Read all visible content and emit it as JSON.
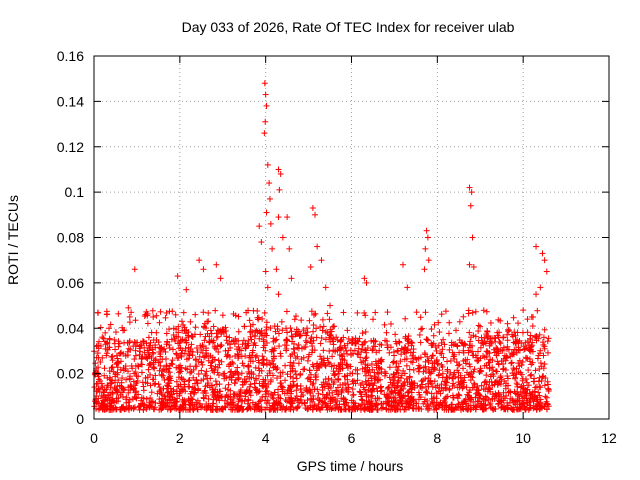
{
  "chart_data": {
    "type": "scatter",
    "title": "Day 033 of 2026, Rate Of TEC Index for receiver ulab",
    "xlabel": "GPS time / hours",
    "ylabel": "ROTI / TECUs",
    "xlim": [
      0,
      12
    ],
    "ylim": [
      0,
      0.16
    ],
    "xticks": [
      "0",
      "2",
      "4",
      "6",
      "8",
      "10",
      "12"
    ],
    "yticks": [
      "0",
      "0.02",
      "0.04",
      "0.06",
      "0.08",
      "0.1",
      "0.12",
      "0.14",
      "0.16"
    ],
    "grid": true,
    "marker": "plus",
    "color": "#ff0000",
    "series": [
      {
        "x_range": [
          0.0,
          10.6
        ],
        "dense_band": [
          0.004,
          0.035
        ],
        "notable_points": [
          [
            0.35,
            0.04
          ],
          [
            0.8,
            0.049
          ],
          [
            0.95,
            0.066
          ],
          [
            1.2,
            0.046
          ],
          [
            1.95,
            0.063
          ],
          [
            2.15,
            0.057
          ],
          [
            2.45,
            0.07
          ],
          [
            2.55,
            0.066
          ],
          [
            2.85,
            0.068
          ],
          [
            2.95,
            0.062
          ],
          [
            3.85,
            0.085
          ],
          [
            3.9,
            0.078
          ],
          [
            3.98,
            0.148
          ],
          [
            4.0,
            0.143
          ],
          [
            4.02,
            0.138
          ],
          [
            3.99,
            0.131
          ],
          [
            3.97,
            0.126
          ],
          [
            4.05,
            0.112
          ],
          [
            4.08,
            0.104
          ],
          [
            4.1,
            0.097
          ],
          [
            4.02,
            0.091
          ],
          [
            4.12,
            0.086
          ],
          [
            4.15,
            0.075
          ],
          [
            4.0,
            0.065
          ],
          [
            4.05,
            0.058
          ],
          [
            4.3,
            0.11
          ],
          [
            4.35,
            0.108
          ],
          [
            4.32,
            0.101
          ],
          [
            4.3,
            0.089
          ],
          [
            4.5,
            0.089
          ],
          [
            4.4,
            0.08
          ],
          [
            4.55,
            0.075
          ],
          [
            4.25,
            0.066
          ],
          [
            4.6,
            0.062
          ],
          [
            4.3,
            0.055
          ],
          [
            5.1,
            0.093
          ],
          [
            5.15,
            0.09
          ],
          [
            5.2,
            0.076
          ],
          [
            5.3,
            0.07
          ],
          [
            5.05,
            0.067
          ],
          [
            5.4,
            0.058
          ],
          [
            5.5,
            0.05
          ],
          [
            6.3,
            0.062
          ],
          [
            6.35,
            0.06
          ],
          [
            7.2,
            0.068
          ],
          [
            7.3,
            0.058
          ],
          [
            7.75,
            0.083
          ],
          [
            7.78,
            0.08
          ],
          [
            7.72,
            0.075
          ],
          [
            7.8,
            0.07
          ],
          [
            7.7,
            0.066
          ],
          [
            8.75,
            0.102
          ],
          [
            8.8,
            0.1
          ],
          [
            8.78,
            0.094
          ],
          [
            8.82,
            0.08
          ],
          [
            8.75,
            0.068
          ],
          [
            8.85,
            0.067
          ],
          [
            10.3,
            0.076
          ],
          [
            10.45,
            0.073
          ],
          [
            10.5,
            0.07
          ],
          [
            10.55,
            0.065
          ],
          [
            10.4,
            0.058
          ],
          [
            10.3,
            0.055
          ],
          [
            10.0,
            0.048
          ],
          [
            10.2,
            0.045
          ]
        ]
      }
    ]
  }
}
